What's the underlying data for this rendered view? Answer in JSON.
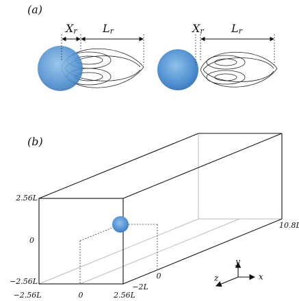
{
  "panel_a": {
    "label": "(a)",
    "left": {
      "xr": {
        "main": "X",
        "sub": "r"
      },
      "lr": {
        "main": "L",
        "sub": "r"
      }
    },
    "right": {
      "xr": {
        "main": "X",
        "sub": "r"
      },
      "lr": {
        "main": "L",
        "sub": "r"
      }
    }
  },
  "panel_b": {
    "label": "(b)",
    "y_ticks": [
      "2.56L",
      "0",
      "−2.56L"
    ],
    "x_ticks": [
      "−2.56L",
      "0",
      "2.56L"
    ],
    "z_ticks": [
      "−2L",
      "0",
      "10.8L"
    ],
    "axes": {
      "y": "y",
      "x": "x",
      "z": "z"
    }
  }
}
